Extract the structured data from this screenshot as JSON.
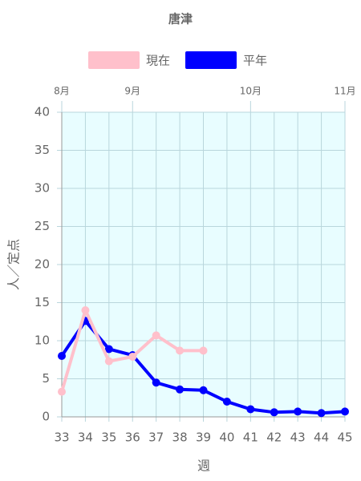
{
  "chart_data": {
    "type": "line",
    "title": "唐津",
    "x": [
      33,
      34,
      35,
      36,
      37,
      38,
      39,
      40,
      41,
      42,
      43,
      44,
      45
    ],
    "series": [
      {
        "name": "現在",
        "color": "#ffc0cb",
        "values": [
          3.3,
          14,
          7.3,
          7.9,
          10.7,
          8.7,
          8.7,
          null,
          null,
          null,
          null,
          null,
          null
        ]
      },
      {
        "name": "平年",
        "color": "#0000ff",
        "values": [
          8.0,
          12.6,
          8.9,
          8.1,
          4.5,
          3.6,
          3.5,
          2.0,
          1.0,
          0.6,
          0.7,
          0.5,
          0.7
        ]
      }
    ],
    "xlim": [
      33,
      45
    ],
    "xticks": [
      33,
      34,
      35,
      36,
      37,
      38,
      39,
      40,
      41,
      42,
      43,
      44,
      45
    ],
    "x2ticks": [
      {
        "value": 33,
        "label": "8月"
      },
      {
        "value": 36,
        "label": "9月"
      },
      {
        "value": 41,
        "label": "10月"
      },
      {
        "value": 45,
        "label": "11月"
      }
    ],
    "ylim": [
      0,
      40
    ],
    "yticks": [
      0,
      5,
      10,
      15,
      20,
      25,
      30,
      35,
      40
    ],
    "xlabel": "週",
    "ylabel": "人／定点",
    "grid": true,
    "legend": "top"
  }
}
